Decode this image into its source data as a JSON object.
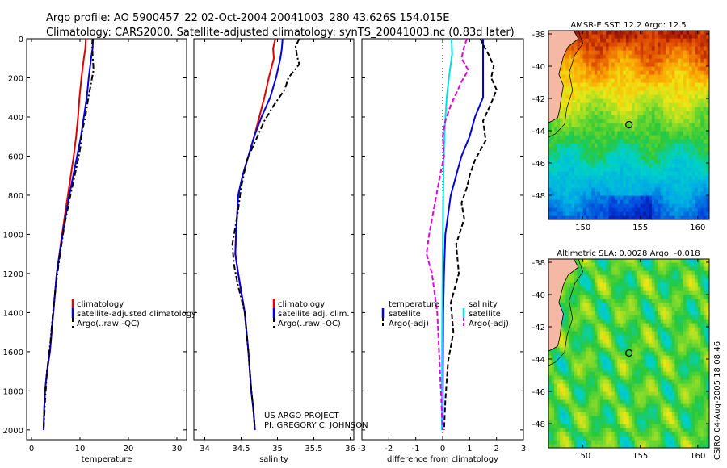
{
  "header": {
    "title1": "Argo profile: AO 5900457_22 02-Oct-2004 20041003_280 43.626S 154.015E",
    "title2": "Climatology: CARS2000. Satellite-adjusted climatology: synTS_20041003.nc (0.83d later)"
  },
  "credits": {
    "project": "US ARGO PROJECT",
    "pi": "PI: GREGORY C. JOHNSON",
    "timestamp": "CSIRO 04-Aug-2005 18:08:46"
  },
  "map_titles": {
    "sst": "AMSR-E SST: 12.2 Argo: 12.5",
    "sla": "Altimetric SLA: 0.0028 Argo: -0.018"
  },
  "colors": {
    "climatology": "#e00000",
    "satellite": "#0000e0",
    "argo": "#000000",
    "salinity": "#00e0e0",
    "argo_salinity": "#e000e0"
  },
  "chart_data": [
    {
      "type": "line",
      "name": "temperature-profile",
      "xlabel": "temperature",
      "ylabel": "",
      "xlim": [
        -1,
        32
      ],
      "ylim": [
        2050,
        0
      ],
      "xticks": [
        "0",
        "10",
        "20",
        "30"
      ],
      "xtick_values": [
        0,
        10,
        20,
        30
      ],
      "yticks": [
        "0",
        "200",
        "400",
        "600",
        "800",
        "1000",
        "1200",
        "1400",
        "1600",
        "1800",
        "2000"
      ],
      "ytick_values": [
        0,
        200,
        400,
        600,
        800,
        1000,
        1200,
        1400,
        1600,
        1800,
        2000
      ],
      "legend": [
        "climatology",
        "satellite-adjusted climatology",
        "Argo(..raw -QC)"
      ],
      "series": [
        {
          "name": "climatology",
          "style": "solid",
          "x": [
            11.2,
            11.1,
            10.8,
            10.3,
            9.9,
            9.6,
            9.2,
            8.7,
            7.5,
            6.3,
            5.2,
            4.5,
            3.8,
            3.2,
            2.8,
            2.6,
            2.5
          ],
          "y": [
            0,
            50,
            100,
            200,
            300,
            400,
            500,
            600,
            800,
            1000,
            1200,
            1400,
            1600,
            1700,
            1800,
            1900,
            2000
          ]
        },
        {
          "name": "satellite-adjusted climatology",
          "style": "solid",
          "x": [
            12.7,
            12.6,
            12.3,
            11.8,
            11.4,
            10.8,
            10.2,
            9.4,
            7.8,
            6.4,
            5.2,
            4.5,
            3.8,
            3.2,
            2.8,
            2.6,
            2.5
          ],
          "y": [
            0,
            50,
            100,
            200,
            300,
            400,
            500,
            600,
            800,
            1000,
            1200,
            1400,
            1600,
            1700,
            1800,
            1900,
            2000
          ]
        },
        {
          "name": "Argo(..raw -QC)",
          "style": "dashdot",
          "x": [
            12.6,
            12.5,
            12.6,
            12.8,
            12.2,
            11.6,
            11.1,
            10.4,
            10.2,
            9.6,
            8.2,
            6.8,
            5.6,
            4.6,
            3.9,
            3.2,
            2.8,
            2.6,
            2.5
          ],
          "y": [
            0,
            30,
            80,
            160,
            240,
            320,
            400,
            480,
            540,
            620,
            780,
            950,
            1150,
            1350,
            1550,
            1700,
            1850,
            1950,
            2000
          ]
        }
      ]
    },
    {
      "type": "line",
      "name": "salinity-profile",
      "xlabel": "salinity",
      "ylabel": "",
      "xlim": [
        33.85,
        36.05
      ],
      "ylim": [
        2050,
        0
      ],
      "xticks": [
        "34",
        "34.5",
        "35",
        "35.5",
        "36"
      ],
      "xtick_values": [
        34,
        34.5,
        35,
        35.5,
        36
      ],
      "legend": [
        "climatology",
        "satellite adj. clim.",
        "Argo(..raw -QC)"
      ],
      "series": [
        {
          "name": "climatology",
          "style": "solid",
          "x": [
            34.97,
            34.94,
            34.95,
            34.88,
            34.82,
            34.75,
            34.68,
            34.6,
            34.52,
            34.46,
            34.43,
            34.42,
            34.46,
            34.55,
            34.6,
            34.64,
            34.67,
            34.69
          ],
          "y": [
            0,
            50,
            100,
            200,
            300,
            400,
            500,
            600,
            700,
            800,
            1000,
            1100,
            1200,
            1400,
            1600,
            1800,
            1900,
            2000
          ]
        },
        {
          "name": "satellite adj. clim.",
          "style": "solid",
          "x": [
            35.07,
            35.06,
            35.04,
            34.98,
            34.9,
            34.78,
            34.68,
            34.6,
            34.52,
            34.46,
            34.43,
            34.42,
            34.46,
            34.55,
            34.6,
            34.64,
            34.67,
            34.69
          ],
          "y": [
            0,
            50,
            100,
            200,
            300,
            400,
            500,
            600,
            700,
            800,
            1000,
            1100,
            1200,
            1400,
            1600,
            1800,
            1900,
            2000
          ]
        },
        {
          "name": "Argo(..raw -QC)",
          "style": "dashdot",
          "x": [
            35.3,
            35.25,
            35.27,
            35.3,
            35.15,
            35.1,
            34.95,
            34.82,
            34.7,
            34.58,
            34.5,
            34.45,
            34.38,
            34.4,
            34.45,
            34.55,
            34.6,
            34.64,
            34.67,
            34.69
          ],
          "y": [
            0,
            40,
            90,
            130,
            200,
            260,
            340,
            420,
            520,
            620,
            760,
            900,
            1050,
            1150,
            1250,
            1400,
            1600,
            1800,
            1900,
            2000
          ]
        }
      ]
    },
    {
      "type": "line",
      "name": "difference-profile",
      "xlabel": "difference from climatology",
      "ylabel": "",
      "xlim": [
        -3,
        3
      ],
      "ylim": [
        2050,
        0
      ],
      "xticks": [
        "-3",
        "-2",
        "-1",
        "0",
        "1",
        "2",
        "3"
      ],
      "xtick_values": [
        -3,
        -2,
        -1,
        0,
        1,
        2,
        3
      ],
      "legend_left": [
        "temperature",
        "satellite",
        "Argo(-adj)"
      ],
      "legend_right": [
        "salinity",
        "satellite",
        "Argo(-adj)"
      ],
      "series": [
        {
          "name": "temperature satellite",
          "style": "solid",
          "x": [
            1.5,
            1.5,
            1.5,
            1.5,
            1.5,
            1.2,
            1.0,
            0.7,
            0.3,
            0.1,
            0.05,
            0.02,
            0.01,
            0.0
          ],
          "y": [
            0,
            50,
            100,
            200,
            300,
            400,
            500,
            600,
            800,
            1000,
            1200,
            1400,
            1700,
            2000
          ]
        },
        {
          "name": "temperature Argo(-adj)",
          "style": "dashed",
          "x": [
            1.4,
            1.5,
            1.7,
            1.9,
            1.8,
            2.0,
            1.8,
            1.5,
            1.6,
            1.2,
            1.0,
            0.9,
            0.7,
            0.8,
            0.5,
            0.6,
            0.3,
            0.4,
            0.2,
            0.1,
            0.05
          ],
          "y": [
            0,
            30,
            80,
            140,
            200,
            260,
            330,
            420,
            520,
            620,
            700,
            760,
            840,
            920,
            1050,
            1200,
            1350,
            1500,
            1650,
            1850,
            2000
          ]
        },
        {
          "name": "salinity satellite",
          "style": "solid",
          "x": [
            0.33,
            0.35,
            0.25,
            0.15,
            0.08,
            0.04,
            0.02,
            0.0,
            -0.02,
            -0.03
          ],
          "y": [
            0,
            80,
            180,
            300,
            450,
            600,
            800,
            1100,
            1500,
            2000
          ]
        },
        {
          "name": "salinity Argo(-adj)",
          "style": "dashed",
          "x": [
            0.9,
            0.8,
            0.7,
            0.95,
            0.7,
            0.5,
            0.3,
            0.1,
            0.0,
            0.05,
            -0.1,
            -0.3,
            -0.5,
            -0.6,
            -0.4,
            -0.2,
            -0.1,
            0.0
          ],
          "y": [
            0,
            40,
            100,
            160,
            220,
            280,
            340,
            420,
            500,
            600,
            700,
            850,
            1000,
            1100,
            1200,
            1400,
            1700,
            2000
          ]
        }
      ]
    },
    {
      "type": "heatmap",
      "name": "sst-map",
      "title": "AMSR-E SST: 12.2 Argo: 12.5",
      "xlim": [
        147,
        161
      ],
      "ylim": [
        -49.5,
        -37.8
      ],
      "xticks": [
        "150",
        "155",
        "160"
      ],
      "xtick_values": [
        150,
        155,
        160
      ],
      "yticks": [
        "-38",
        "-40",
        "-42",
        "-44",
        "-46",
        "-48"
      ],
      "ytick_values": [
        -38,
        -40,
        -42,
        -44,
        -46,
        -48
      ],
      "profile_location": {
        "lon": 154.015,
        "lat": -43.626
      }
    },
    {
      "type": "heatmap",
      "name": "sla-map",
      "title": "Altimetric SLA: 0.0028 Argo: -0.018",
      "xlim": [
        147,
        161
      ],
      "ylim": [
        -49.5,
        -37.8
      ],
      "xticks": [
        "150",
        "155",
        "160"
      ],
      "xtick_values": [
        150,
        155,
        160
      ],
      "yticks": [
        "-38",
        "-40",
        "-42",
        "-44",
        "-46",
        "-48"
      ],
      "ytick_values": [
        -38,
        -40,
        -42,
        -44,
        -46,
        -48
      ],
      "profile_location": {
        "lon": 154.015,
        "lat": -43.626
      }
    }
  ]
}
